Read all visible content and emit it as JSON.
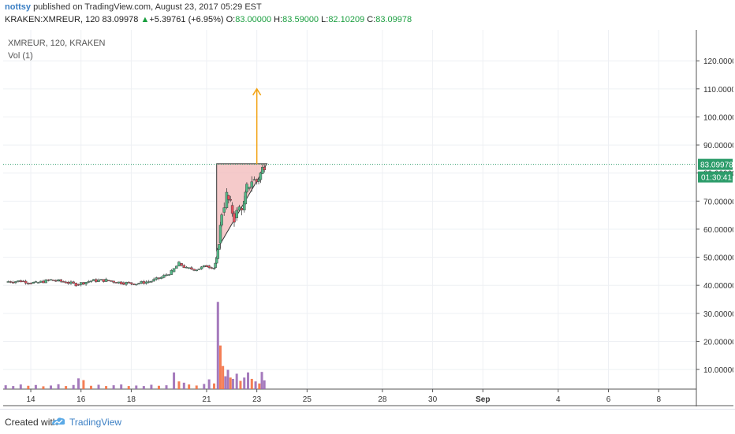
{
  "header": {
    "user": "nottsy",
    "published_text": "published on TradingView.com, August 23, 2017 05:29 EST",
    "symbol": "KRAKEN:XMREUR, 120",
    "last": "83.09978",
    "change_arrow": "▲",
    "change": "+5.39761 (+6.95%)",
    "o_label": "O:",
    "o_value": "83.00000",
    "h_label": "H:",
    "h_value": "83.59000",
    "l_label": "L:",
    "l_value": "82.10209",
    "c_label": "C:",
    "c_value": "83.09978"
  },
  "footer": {
    "created_with": "Created with",
    "brand": "TradingView"
  },
  "chart_data": {
    "type": "candlestick",
    "legend_title": "XMREUR, 120, KRAKEN",
    "volume_label": "Vol (1)",
    "x_ticks": [
      "14",
      "16",
      "18",
      "21",
      "23",
      "25",
      "28",
      "30",
      "Sep",
      "4",
      "6",
      "8"
    ],
    "x_tick_days": [
      14,
      16,
      18,
      21,
      23,
      25,
      28,
      30,
      32,
      35,
      37,
      39
    ],
    "y_ticks": [
      "120.00000",
      "110.00000",
      "100.00000",
      "90.00000",
      "80.00000",
      "70.00000",
      "60.00000",
      "50.00000",
      "40.00000",
      "30.00000",
      "20.00000",
      "10.00000"
    ],
    "y_tick_values": [
      120,
      110,
      100,
      90,
      80,
      70,
      60,
      50,
      40,
      30,
      20,
      10
    ],
    "ylim": [
      3,
      131
    ],
    "xlim": [
      12.9,
      40.5
    ],
    "last_price_label": "83.09978",
    "last_price_value": 83.09978,
    "countdown_label": "01:30:41",
    "colors": {
      "up": "#53b987",
      "down": "#eb4d5c",
      "vol_up": "#9b6bb5",
      "vol_down": "#f37042",
      "triangle_fill": "#f2b8b8",
      "triangle_stroke": "#333333",
      "arrow": "#f2a313",
      "price_line": "#2c9c6a"
    },
    "pattern_triangle": [
      [
        21.4,
        83.3
      ],
      [
        23.4,
        83.3
      ],
      [
        21.4,
        52.5
      ]
    ],
    "target_arrow": {
      "x": 23.0,
      "from": 83.1,
      "to": 110
    },
    "price_path": [
      [
        13.0,
        41.3
      ],
      [
        13.6,
        41.5
      ],
      [
        14.2,
        40.8
      ],
      [
        14.8,
        41.9
      ],
      [
        15.4,
        41.1
      ],
      [
        15.8,
        40.3
      ],
      [
        16.4,
        41.6
      ],
      [
        17.0,
        41.8
      ],
      [
        17.6,
        40.9
      ],
      [
        18.2,
        40.6
      ],
      [
        18.8,
        41.5
      ],
      [
        19.2,
        42.8
      ],
      [
        19.6,
        44.8
      ],
      [
        19.9,
        47.8
      ],
      [
        20.2,
        46.0
      ],
      [
        20.6,
        45.7
      ],
      [
        21.0,
        46.9
      ],
      [
        21.3,
        46.3
      ],
      [
        21.4,
        49.5
      ],
      [
        21.5,
        55.0
      ],
      [
        21.6,
        66.0
      ],
      [
        21.8,
        72.0
      ],
      [
        21.95,
        68.5
      ],
      [
        22.1,
        64.0
      ],
      [
        22.3,
        67.5
      ],
      [
        22.5,
        69.0
      ],
      [
        22.6,
        74.5
      ],
      [
        22.8,
        77.5
      ],
      [
        23.0,
        77.0
      ],
      [
        23.15,
        79.8
      ],
      [
        23.3,
        83.1
      ]
    ],
    "volume_bars": [
      [
        13.0,
        1.5
      ],
      [
        13.3,
        1.2
      ],
      [
        13.6,
        1.8
      ],
      [
        13.9,
        1.3
      ],
      [
        14.2,
        1.6
      ],
      [
        14.5,
        1.1
      ],
      [
        14.8,
        1.4
      ],
      [
        15.1,
        1.9
      ],
      [
        15.4,
        1.2
      ],
      [
        15.7,
        1.6
      ],
      [
        15.9,
        4.2
      ],
      [
        16.1,
        3.5
      ],
      [
        16.4,
        1.3
      ],
      [
        16.7,
        1.7
      ],
      [
        17.0,
        1.2
      ],
      [
        17.3,
        1.5
      ],
      [
        17.6,
        1.8
      ],
      [
        17.9,
        1.2
      ],
      [
        18.2,
        1.4
      ],
      [
        18.5,
        1.2
      ],
      [
        18.8,
        1.7
      ],
      [
        19.1,
        1.3
      ],
      [
        19.4,
        1.5
      ],
      [
        19.7,
        6.5
      ],
      [
        19.9,
        3.0
      ],
      [
        20.1,
        2.5
      ],
      [
        20.3,
        1.8
      ],
      [
        20.6,
        1.4
      ],
      [
        20.9,
        2.0
      ],
      [
        21.1,
        3.8
      ],
      [
        21.3,
        2.2
      ],
      [
        21.45,
        34.0
      ],
      [
        21.55,
        17.0
      ],
      [
        21.65,
        9.0
      ],
      [
        21.75,
        5.0
      ],
      [
        21.85,
        7.5
      ],
      [
        21.95,
        4.5
      ],
      [
        22.05,
        4.0
      ],
      [
        22.2,
        6.0
      ],
      [
        22.35,
        3.2
      ],
      [
        22.5,
        4.5
      ],
      [
        22.65,
        6.5
      ],
      [
        22.8,
        4.0
      ],
      [
        22.95,
        3.0
      ],
      [
        23.1,
        2.2
      ],
      [
        23.2,
        6.7
      ],
      [
        23.3,
        3.4
      ]
    ]
  }
}
